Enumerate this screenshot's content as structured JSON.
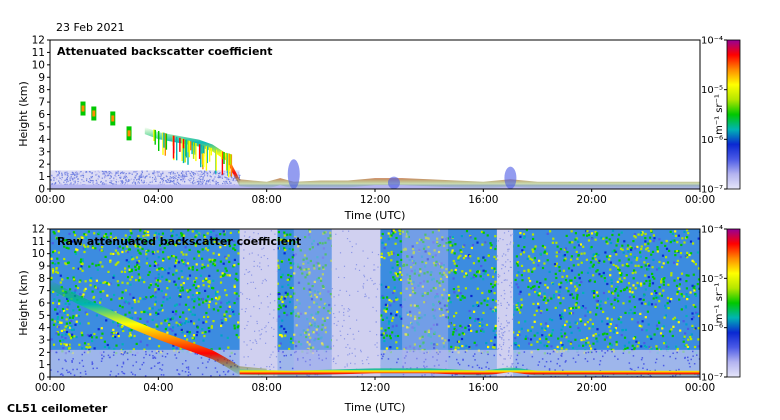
{
  "date_label": "23 Feb 2021",
  "footer_label": "CL51 ceilometer",
  "colors": {
    "background_low": "#d8d8f0",
    "colormap": [
      "#e6e6fa",
      "#b4b4f0",
      "#4b5ae6",
      "#0a28d2",
      "#00b4b4",
      "#00c800",
      "#b4e600",
      "#ffff00",
      "#ff8c00",
      "#ff0000",
      "#960096"
    ]
  },
  "chart_data": [
    {
      "type": "heatmap",
      "title": "Attenuated backscatter coefficient",
      "xlabel": "Time (UTC)",
      "ylabel": "Height (km)",
      "xlim": [
        0,
        24
      ],
      "ylim": [
        0,
        12
      ],
      "x_ticks": [
        "00:00",
        "04:00",
        "08:00",
        "12:00",
        "16:00",
        "20:00",
        "00:00"
      ],
      "y_ticks": [
        0,
        1,
        2,
        3,
        4,
        5,
        6,
        7,
        8,
        9,
        10,
        11,
        12
      ],
      "colorbar": {
        "label": "m⁻¹ sr⁻¹",
        "scale": "log",
        "range": [
          1e-07,
          0.0001
        ],
        "ticks": [
          "10⁻⁷",
          "10⁻⁶",
          "10⁻⁵",
          "10⁻⁴"
        ]
      },
      "layers": {
        "cloud_base_height_km": [
          [
            3.5,
            4.7
          ],
          [
            4.0,
            4.3
          ],
          [
            4.5,
            4.1
          ],
          [
            5.0,
            3.9
          ],
          [
            5.5,
            3.7
          ],
          [
            6.0,
            3.3
          ],
          [
            6.5,
            2.6
          ],
          [
            7.0,
            0.5
          ],
          [
            8.0,
            0.3
          ],
          [
            8.5,
            0.6
          ],
          [
            9.0,
            0.3
          ],
          [
            10.0,
            0.4
          ],
          [
            11.0,
            0.4
          ],
          [
            12.0,
            0.6
          ],
          [
            13.0,
            0.6
          ],
          [
            14.0,
            0.5
          ],
          [
            15.0,
            0.4
          ],
          [
            16.0,
            0.3
          ],
          [
            17.0,
            0.5
          ],
          [
            18.0,
            0.3
          ],
          [
            20.0,
            0.3
          ],
          [
            22.0,
            0.3
          ],
          [
            24.0,
            0.3
          ]
        ],
        "elevated_cloud_km": [
          [
            1.2,
            6.4
          ],
          [
            1.6,
            6.0
          ],
          [
            2.3,
            5.6
          ],
          [
            2.9,
            4.4
          ]
        ]
      }
    },
    {
      "type": "heatmap",
      "title": "Raw attenuated backscatter coefficient",
      "xlabel": "Time (UTC)",
      "ylabel": "Height (km)",
      "xlim": [
        0,
        24
      ],
      "ylim": [
        0,
        12
      ],
      "x_ticks": [
        "00:00",
        "04:00",
        "08:00",
        "12:00",
        "16:00",
        "20:00",
        "00:00"
      ],
      "y_ticks": [
        0,
        1,
        2,
        3,
        4,
        5,
        6,
        7,
        8,
        9,
        10,
        11,
        12
      ],
      "colorbar": {
        "label": "m⁻¹ sr⁻¹",
        "scale": "log",
        "range": [
          1e-07,
          0.0001
        ],
        "ticks": [
          "10⁻⁷",
          "10⁻⁶",
          "10⁻⁵",
          "10⁻⁴"
        ]
      },
      "layers": {
        "descending_layer_km": [
          [
            0.0,
            7.5
          ],
          [
            1.0,
            6.3
          ],
          [
            2.0,
            5.3
          ],
          [
            3.0,
            4.3
          ],
          [
            4.0,
            3.4
          ],
          [
            5.0,
            2.6
          ],
          [
            6.0,
            1.8
          ],
          [
            6.5,
            1.2
          ],
          [
            7.0,
            0.5
          ],
          [
            8.0,
            0.3
          ]
        ],
        "quiet_intervals_utc": [
          [
            7.0,
            8.4
          ],
          [
            10.4,
            12.2
          ],
          [
            16.5,
            17.1
          ]
        ],
        "low_signal_bands_utc": [
          [
            9.0,
            10.4
          ],
          [
            13.0,
            14.7
          ]
        ]
      }
    }
  ]
}
